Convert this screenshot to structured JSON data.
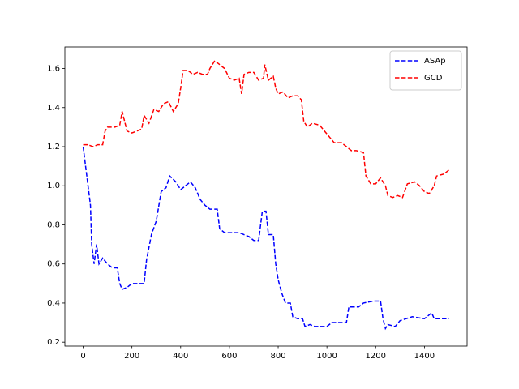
{
  "chart_data": {
    "type": "line",
    "series": [
      {
        "name": "ASAp",
        "color": "#0000ff",
        "x": [
          0,
          10,
          20,
          30,
          35,
          45,
          55,
          65,
          80,
          100,
          120,
          140,
          150,
          160,
          180,
          200,
          250,
          260,
          280,
          300,
          320,
          340,
          355,
          380,
          400,
          420,
          440,
          460,
          480,
          500,
          520,
          550,
          560,
          580,
          600,
          640,
          680,
          700,
          720,
          735,
          750,
          760,
          780,
          790,
          800,
          815,
          830,
          850,
          860,
          880,
          900,
          910,
          930,
          950,
          1000,
          1020,
          1080,
          1090,
          1130,
          1150,
          1190,
          1220,
          1230,
          1240,
          1250,
          1280,
          1300,
          1350,
          1400,
          1430,
          1440,
          1500
        ],
        "values": [
          1.2,
          1.1,
          1.0,
          0.9,
          0.7,
          0.6,
          0.7,
          0.6,
          0.63,
          0.6,
          0.58,
          0.58,
          0.5,
          0.47,
          0.48,
          0.5,
          0.5,
          0.62,
          0.75,
          0.82,
          0.97,
          0.99,
          1.05,
          1.02,
          0.98,
          1.0,
          1.02,
          0.99,
          0.93,
          0.9,
          0.88,
          0.88,
          0.78,
          0.76,
          0.76,
          0.76,
          0.74,
          0.72,
          0.72,
          0.87,
          0.87,
          0.75,
          0.75,
          0.6,
          0.52,
          0.45,
          0.4,
          0.4,
          0.33,
          0.32,
          0.32,
          0.28,
          0.29,
          0.28,
          0.28,
          0.3,
          0.3,
          0.38,
          0.38,
          0.4,
          0.41,
          0.41,
          0.32,
          0.27,
          0.29,
          0.28,
          0.31,
          0.33,
          0.32,
          0.35,
          0.32,
          0.32
        ]
      },
      {
        "name": "GCD",
        "color": "#ff0000",
        "x": [
          0,
          20,
          40,
          60,
          80,
          90,
          100,
          130,
          150,
          160,
          180,
          200,
          220,
          240,
          250,
          270,
          290,
          310,
          330,
          350,
          370,
          390,
          400,
          410,
          430,
          450,
          470,
          490,
          510,
          520,
          540,
          560,
          580,
          600,
          620,
          640,
          650,
          660,
          680,
          700,
          720,
          740,
          745,
          760,
          780,
          790,
          800,
          820,
          840,
          860,
          880,
          895,
          905,
          920,
          940,
          970,
          990,
          1010,
          1030,
          1060,
          1080,
          1100,
          1120,
          1150,
          1160,
          1180,
          1200,
          1220,
          1240,
          1250,
          1270,
          1290,
          1310,
          1330,
          1360,
          1380,
          1400,
          1420,
          1440,
          1450,
          1480,
          1500
        ],
        "values": [
          1.21,
          1.21,
          1.2,
          1.21,
          1.21,
          1.28,
          1.3,
          1.3,
          1.31,
          1.38,
          1.28,
          1.27,
          1.28,
          1.29,
          1.36,
          1.32,
          1.39,
          1.38,
          1.42,
          1.43,
          1.38,
          1.42,
          1.5,
          1.59,
          1.59,
          1.57,
          1.58,
          1.57,
          1.57,
          1.6,
          1.64,
          1.62,
          1.6,
          1.55,
          1.54,
          1.55,
          1.47,
          1.57,
          1.58,
          1.58,
          1.54,
          1.55,
          1.62,
          1.54,
          1.56,
          1.5,
          1.47,
          1.48,
          1.45,
          1.46,
          1.46,
          1.44,
          1.33,
          1.3,
          1.32,
          1.31,
          1.28,
          1.25,
          1.22,
          1.22,
          1.2,
          1.18,
          1.18,
          1.17,
          1.05,
          1.01,
          1.01,
          1.04,
          1.0,
          0.95,
          0.94,
          0.95,
          0.94,
          1.01,
          1.02,
          1.0,
          0.97,
          0.96,
          1.0,
          1.05,
          1.06,
          1.08
        ]
      }
    ],
    "xlim": [
      -75,
      1575
    ],
    "xticks": [
      0,
      200,
      400,
      600,
      800,
      1000,
      1200,
      1400
    ],
    "ylim": [
      0.18,
      1.71
    ],
    "yticks": [
      0.2,
      0.4,
      0.6,
      0.8,
      {
        "value": 1,
        "label": "1.0"
      },
      1.2,
      1.4,
      1.6
    ],
    "legend": "upper right",
    "line_style": "dashed"
  }
}
